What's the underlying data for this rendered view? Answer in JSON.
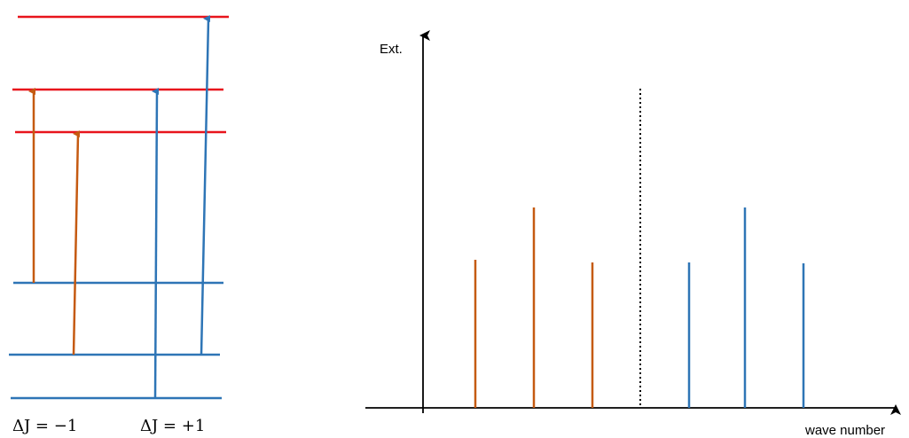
{
  "energy_diagram": {
    "upper_level_color": "#e8141c",
    "lower_level_color": "#2e75b6",
    "p_branch_color": "#c55a11",
    "r_branch_color": "#2e75b6",
    "label_p_branch": "ΔJ = −1",
    "label_r_branch": "ΔJ = +1"
  },
  "spectrum": {
    "y_axis_label": "Ext.",
    "x_axis_label": "wave number",
    "p_branch_color": "#c55a11",
    "r_branch_color": "#2e75b6",
    "center_marker": "dotted",
    "relative_intensities_p": [
      0.6,
      0.8,
      0.59
    ],
    "relative_intensities_r": [
      0.59,
      0.8,
      0.58
    ]
  }
}
